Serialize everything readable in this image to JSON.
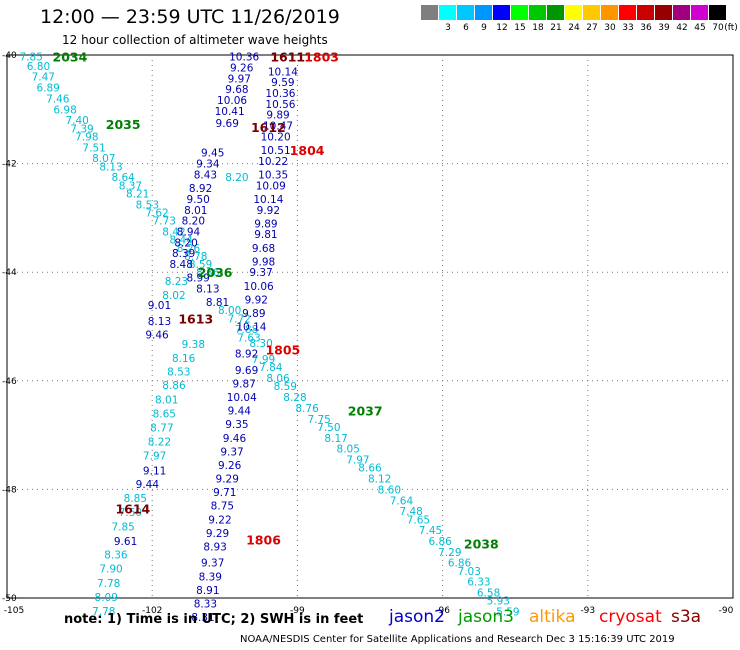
{
  "header": {
    "title": "12:00 — 23:59 UTC 11/26/2019",
    "subtitle": "12 hour collection of altimeter wave heights"
  },
  "legend": {
    "swatches": [
      {
        "label": "",
        "color": "#7f7f7f"
      },
      {
        "label": "3",
        "color": "#00ffff"
      },
      {
        "label": "6",
        "color": "#00c8ff"
      },
      {
        "label": "9",
        "color": "#0096ff"
      },
      {
        "label": "12",
        "color": "#0000ff"
      },
      {
        "label": "15",
        "color": "#00ff00"
      },
      {
        "label": "18",
        "color": "#00c800"
      },
      {
        "label": "21",
        "color": "#009600"
      },
      {
        "label": "24",
        "color": "#ffff00"
      },
      {
        "label": "27",
        "color": "#ffc800"
      },
      {
        "label": "30",
        "color": "#ff9600"
      },
      {
        "label": "33",
        "color": "#ff0000"
      },
      {
        "label": "36",
        "color": "#c80000"
      },
      {
        "label": "39",
        "color": "#960000"
      },
      {
        "label": "42",
        "color": "#a0007f"
      },
      {
        "label": "45",
        "color": "#d000d0"
      },
      {
        "label": "70",
        "color": "#000000"
      }
    ],
    "unit": "(ft)"
  },
  "footer": {
    "note": "note:  1) Time is in UTC;  2) SWH is in feet",
    "satellites": [
      {
        "name": "jason2",
        "color": "#0000cc"
      },
      {
        "name": "jason3",
        "color": "#009900"
      },
      {
        "name": "altika",
        "color": "#ff9900"
      },
      {
        "name": "cryosat",
        "color": "#ff0000"
      },
      {
        "name": "s3a",
        "color": "#880000"
      }
    ],
    "credit": "NOAA/NESDIS Center for Satellite Applications and Research    Dec  3 15:16:39 UTC 2019"
  },
  "chart_data": {
    "type": "scatter",
    "xlim": [
      -105,
      -90
    ],
    "ylim": [
      -50,
      -40
    ],
    "xticks": [
      -105,
      -102,
      -99,
      -96,
      -93,
      -90
    ],
    "yticks": [
      -40,
      -42,
      -44,
      -46,
      -48,
      -50
    ],
    "xtick_labels": [
      "-105",
      "-102",
      "-99",
      "-96",
      "-93",
      "-90"
    ],
    "ytick_labels": [
      "-40",
      "-42",
      "-44",
      "-46",
      "-48",
      "-50"
    ],
    "grid": true,
    "track_labels": [
      {
        "text": "2034",
        "x": -103.7,
        "y": -40.03,
        "color": "#008000"
      },
      {
        "text": "2035",
        "x": -102.6,
        "y": -41.27,
        "color": "#008000"
      },
      {
        "text": "2036",
        "x": -100.7,
        "y": -44.0,
        "color": "#008000"
      },
      {
        "text": "2037",
        "x": -97.6,
        "y": -46.55,
        "color": "#008000"
      },
      {
        "text": "2038",
        "x": -95.2,
        "y": -49.0,
        "color": "#008000"
      },
      {
        "text": "1611",
        "x": -99.2,
        "y": -40.03,
        "color": "#7a0000"
      },
      {
        "text": "1612",
        "x": -99.6,
        "y": -41.33,
        "color": "#7a0000"
      },
      {
        "text": "1613",
        "x": -101.1,
        "y": -44.85,
        "color": "#7a0000"
      },
      {
        "text": "1614",
        "x": -102.4,
        "y": -48.35,
        "color": "#7a0000"
      },
      {
        "text": "1803",
        "x": -98.5,
        "y": -40.03,
        "color": "#dd0000"
      },
      {
        "text": "1804",
        "x": -98.8,
        "y": -41.75,
        "color": "#dd0000"
      },
      {
        "text": "1805",
        "x": -99.3,
        "y": -45.42,
        "color": "#dd0000"
      },
      {
        "text": "1806",
        "x": -99.7,
        "y": -48.92,
        "color": "#dd0000"
      }
    ],
    "series": [
      {
        "name": "jason3",
        "color": "#00bcd4",
        "points": [
          {
            "x": -104.5,
            "y": -40.03,
            "v": "7.85"
          },
          {
            "x": -104.35,
            "y": -40.2,
            "v": "6.80"
          },
          {
            "x": -104.25,
            "y": -40.4,
            "v": "7.47"
          },
          {
            "x": -104.15,
            "y": -40.6,
            "v": "6.89"
          },
          {
            "x": -103.95,
            "y": -40.8,
            "v": "7.46"
          },
          {
            "x": -103.8,
            "y": -41.0,
            "v": "6.98"
          },
          {
            "x": -103.55,
            "y": -41.2,
            "v": "7.40"
          },
          {
            "x": -103.45,
            "y": -41.35,
            "v": "7.39"
          },
          {
            "x": -103.35,
            "y": -41.5,
            "v": "7.98"
          },
          {
            "x": -103.2,
            "y": -41.7,
            "v": "7.51"
          },
          {
            "x": -103.0,
            "y": -41.9,
            "v": "8.07"
          },
          {
            "x": -102.85,
            "y": -42.05,
            "v": "8.13"
          },
          {
            "x": -102.6,
            "y": -42.25,
            "v": "8.64"
          },
          {
            "x": -102.45,
            "y": -42.4,
            "v": "8.37"
          },
          {
            "x": -102.3,
            "y": -42.55,
            "v": "8.21"
          },
          {
            "x": -102.1,
            "y": -42.75,
            "v": "8.53"
          },
          {
            "x": -101.9,
            "y": -42.9,
            "v": "7.62"
          },
          {
            "x": -101.75,
            "y": -43.05,
            "v": "7.73"
          },
          {
            "x": -101.55,
            "y": -43.25,
            "v": "8.42"
          },
          {
            "x": -101.4,
            "y": -43.4,
            "v": "8.44"
          },
          {
            "x": -101.25,
            "y": -43.55,
            "v": "8.26"
          },
          {
            "x": -101.1,
            "y": -43.7,
            "v": "8.78"
          },
          {
            "x": -101.0,
            "y": -43.85,
            "v": "8.59"
          },
          {
            "x": -100.85,
            "y": -44.0,
            "v": "8.36"
          },
          {
            "x": -101.5,
            "y": -44.16,
            "v": "8.23"
          },
          {
            "x": -101.55,
            "y": -44.42,
            "v": "8.02"
          },
          {
            "x": -100.4,
            "y": -44.7,
            "v": "8.00"
          },
          {
            "x": -100.2,
            "y": -44.85,
            "v": "7.72"
          },
          {
            "x": -100.05,
            "y": -45.05,
            "v": "7.88"
          },
          {
            "x": -100.0,
            "y": -45.2,
            "v": "7.63"
          },
          {
            "x": -99.75,
            "y": -45.3,
            "v": "8.30"
          },
          {
            "x": -99.7,
            "y": -45.6,
            "v": "7.99"
          },
          {
            "x": -99.55,
            "y": -45.75,
            "v": "7.84"
          },
          {
            "x": -99.4,
            "y": -45.95,
            "v": "8.06"
          },
          {
            "x": -99.25,
            "y": -46.1,
            "v": "8.59"
          },
          {
            "x": -99.05,
            "y": -46.3,
            "v": "8.28"
          },
          {
            "x": -98.8,
            "y": -46.5,
            "v": "8.76"
          },
          {
            "x": -98.55,
            "y": -46.7,
            "v": "7.75"
          },
          {
            "x": -98.35,
            "y": -46.85,
            "v": "7.50"
          },
          {
            "x": -98.2,
            "y": -47.05,
            "v": "8.17"
          },
          {
            "x": -97.95,
            "y": -47.25,
            "v": "8.05"
          },
          {
            "x": -97.75,
            "y": -47.45,
            "v": "7.97"
          },
          {
            "x": -97.5,
            "y": -47.6,
            "v": "8.66"
          },
          {
            "x": -97.3,
            "y": -47.8,
            "v": "8.12"
          },
          {
            "x": -97.1,
            "y": -48.0,
            "v": "8.60"
          },
          {
            "x": -96.85,
            "y": -48.2,
            "v": "7.64"
          },
          {
            "x": -96.65,
            "y": -48.4,
            "v": "7.48"
          },
          {
            "x": -96.5,
            "y": -48.55,
            "v": "7.65"
          },
          {
            "x": -96.25,
            "y": -48.75,
            "v": "7.45"
          },
          {
            "x": -96.05,
            "y": -48.95,
            "v": "6.86"
          },
          {
            "x": -95.85,
            "y": -49.15,
            "v": "7.29"
          },
          {
            "x": -95.65,
            "y": -49.35,
            "v": "6.86"
          },
          {
            "x": -95.45,
            "y": -49.5,
            "v": "7.03"
          },
          {
            "x": -95.25,
            "y": -49.7,
            "v": "6.33"
          },
          {
            "x": -95.05,
            "y": -49.9,
            "v": "6.58"
          },
          {
            "x": -94.85,
            "y": -50.05,
            "v": "5.93"
          },
          {
            "x": -94.65,
            "y": -50.25,
            "v": "5.59"
          },
          {
            "x": -101.15,
            "y": -45.32,
            "v": "9.38"
          },
          {
            "x": -101.35,
            "y": -45.58,
            "v": "8.16"
          },
          {
            "x": -101.45,
            "y": -45.83,
            "v": "8.53"
          },
          {
            "x": -101.55,
            "y": -46.08,
            "v": "8.86"
          },
          {
            "x": -101.7,
            "y": -46.34,
            "v": "8.01"
          },
          {
            "x": -101.75,
            "y": -46.6,
            "v": "8.65"
          },
          {
            "x": -101.8,
            "y": -46.86,
            "v": "8.77"
          },
          {
            "x": -101.85,
            "y": -47.12,
            "v": "8.22"
          },
          {
            "x": -101.95,
            "y": -47.38,
            "v": "7.97"
          },
          {
            "x": -102.35,
            "y": -48.16,
            "v": "8.85"
          },
          {
            "x": -102.45,
            "y": -48.42,
            "v": "7.50"
          },
          {
            "x": -102.6,
            "y": -48.68,
            "v": "7.85"
          },
          {
            "x": -102.75,
            "y": -49.2,
            "v": "8.36"
          },
          {
            "x": -102.85,
            "y": -49.46,
            "v": "7.90"
          },
          {
            "x": -102.9,
            "y": -49.72,
            "v": "7.78"
          },
          {
            "x": -102.95,
            "y": -49.98,
            "v": "8.09"
          },
          {
            "x": -103.0,
            "y": -50.24,
            "v": "7.78"
          },
          {
            "x": -100.25,
            "y": -42.25,
            "v": "8.20"
          }
        ]
      },
      {
        "name": "jason2",
        "color": "#0000b0",
        "points": [
          {
            "x": -100.1,
            "y": -40.03,
            "v": "10.36"
          },
          {
            "x": -100.15,
            "y": -40.23,
            "v": "9.26"
          },
          {
            "x": -100.2,
            "y": -40.43,
            "v": "9.97"
          },
          {
            "x": -100.25,
            "y": -40.63,
            "v": "9.68"
          },
          {
            "x": -100.35,
            "y": -40.83,
            "v": "10.06"
          },
          {
            "x": -100.4,
            "y": -41.03,
            "v": "10.41"
          },
          {
            "x": -100.45,
            "y": -41.25,
            "v": "9.69"
          },
          {
            "x": -100.75,
            "y": -41.8,
            "v": "9.45"
          },
          {
            "x": -100.85,
            "y": -42.0,
            "v": "9.34"
          },
          {
            "x": -100.9,
            "y": -42.2,
            "v": "8.43"
          },
          {
            "x": -101.0,
            "y": -42.45,
            "v": "8.92"
          },
          {
            "x": -101.05,
            "y": -42.65,
            "v": "9.50"
          },
          {
            "x": -101.1,
            "y": -42.85,
            "v": "8.01"
          },
          {
            "x": -101.15,
            "y": -43.05,
            "v": "8.20"
          },
          {
            "x": -101.25,
            "y": -43.25,
            "v": "8.94"
          },
          {
            "x": -101.3,
            "y": -43.45,
            "v": "8.20"
          },
          {
            "x": -101.35,
            "y": -43.65,
            "v": "8.39"
          },
          {
            "x": -101.4,
            "y": -43.85,
            "v": "8.48"
          },
          {
            "x": -101.05,
            "y": -44.1,
            "v": "8.99"
          },
          {
            "x": -100.85,
            "y": -44.3,
            "v": "8.13"
          },
          {
            "x": -100.65,
            "y": -44.55,
            "v": "8.81"
          },
          {
            "x": -101.85,
            "y": -44.6,
            "v": "9.01"
          },
          {
            "x": -101.85,
            "y": -44.9,
            "v": "8.13"
          },
          {
            "x": -101.9,
            "y": -45.15,
            "v": "9.46"
          },
          {
            "x": -99.3,
            "y": -40.3,
            "v": "10.14"
          },
          {
            "x": -99.3,
            "y": -40.5,
            "v": "9.59"
          },
          {
            "x": -99.35,
            "y": -40.7,
            "v": "10.36"
          },
          {
            "x": -99.35,
            "y": -40.9,
            "v": "10.56"
          },
          {
            "x": -99.4,
            "y": -41.1,
            "v": "9.89"
          },
          {
            "x": -99.4,
            "y": -41.3,
            "v": "10.47"
          },
          {
            "x": -99.45,
            "y": -41.5,
            "v": "10.20"
          },
          {
            "x": -99.45,
            "y": -41.75,
            "v": "10.51"
          },
          {
            "x": -99.5,
            "y": -41.95,
            "v": "10.22"
          },
          {
            "x": -99.5,
            "y": -42.2,
            "v": "10.35"
          },
          {
            "x": -99.55,
            "y": -42.4,
            "v": "10.09"
          },
          {
            "x": -99.6,
            "y": -42.65,
            "v": "10.14"
          },
          {
            "x": -99.6,
            "y": -42.85,
            "v": "9.92"
          },
          {
            "x": -99.65,
            "y": -43.1,
            "v": "9.89"
          },
          {
            "x": -99.65,
            "y": -43.3,
            "v": "9.81"
          },
          {
            "x": -99.7,
            "y": -43.55,
            "v": "9.68"
          },
          {
            "x": -99.7,
            "y": -43.8,
            "v": "9.98"
          },
          {
            "x": -99.75,
            "y": -44.0,
            "v": "9.37"
          },
          {
            "x": -99.8,
            "y": -44.25,
            "v": "10.06"
          },
          {
            "x": -99.85,
            "y": -44.5,
            "v": "9.92"
          },
          {
            "x": -99.9,
            "y": -44.75,
            "v": "9.89"
          },
          {
            "x": -99.95,
            "y": -45.0,
            "v": "10.14"
          },
          {
            "x": -100.05,
            "y": -45.5,
            "v": "8.92"
          },
          {
            "x": -100.05,
            "y": -45.8,
            "v": "9.69"
          },
          {
            "x": -100.1,
            "y": -46.05,
            "v": "9.87"
          },
          {
            "x": -100.15,
            "y": -46.3,
            "v": "10.04"
          },
          {
            "x": -100.2,
            "y": -46.55,
            "v": "9.44"
          },
          {
            "x": -100.25,
            "y": -46.8,
            "v": "9.35"
          },
          {
            "x": -100.3,
            "y": -47.05,
            "v": "9.46"
          },
          {
            "x": -100.35,
            "y": -47.3,
            "v": "9.37"
          },
          {
            "x": -100.4,
            "y": -47.55,
            "v": "9.26"
          },
          {
            "x": -100.45,
            "y": -47.8,
            "v": "9.29"
          },
          {
            "x": -100.5,
            "y": -48.05,
            "v": "9.71"
          },
          {
            "x": -100.55,
            "y": -48.3,
            "v": "8.75"
          },
          {
            "x": -100.6,
            "y": -48.55,
            "v": "9.22"
          },
          {
            "x": -100.65,
            "y": -48.8,
            "v": "9.29"
          },
          {
            "x": -100.7,
            "y": -49.05,
            "v": "8.93"
          },
          {
            "x": -100.75,
            "y": -49.35,
            "v": "9.37"
          },
          {
            "x": -100.8,
            "y": -49.6,
            "v": "8.39"
          },
          {
            "x": -100.85,
            "y": -49.85,
            "v": "8.91"
          },
          {
            "x": -100.9,
            "y": -50.1,
            "v": "8.33"
          },
          {
            "x": -100.95,
            "y": -50.35,
            "v": "8.31"
          },
          {
            "x": -101.95,
            "y": -47.65,
            "v": "9.11"
          },
          {
            "x": -102.1,
            "y": -47.9,
            "v": "9.44"
          },
          {
            "x": -102.55,
            "y": -48.95,
            "v": "9.61"
          }
        ]
      }
    ]
  }
}
